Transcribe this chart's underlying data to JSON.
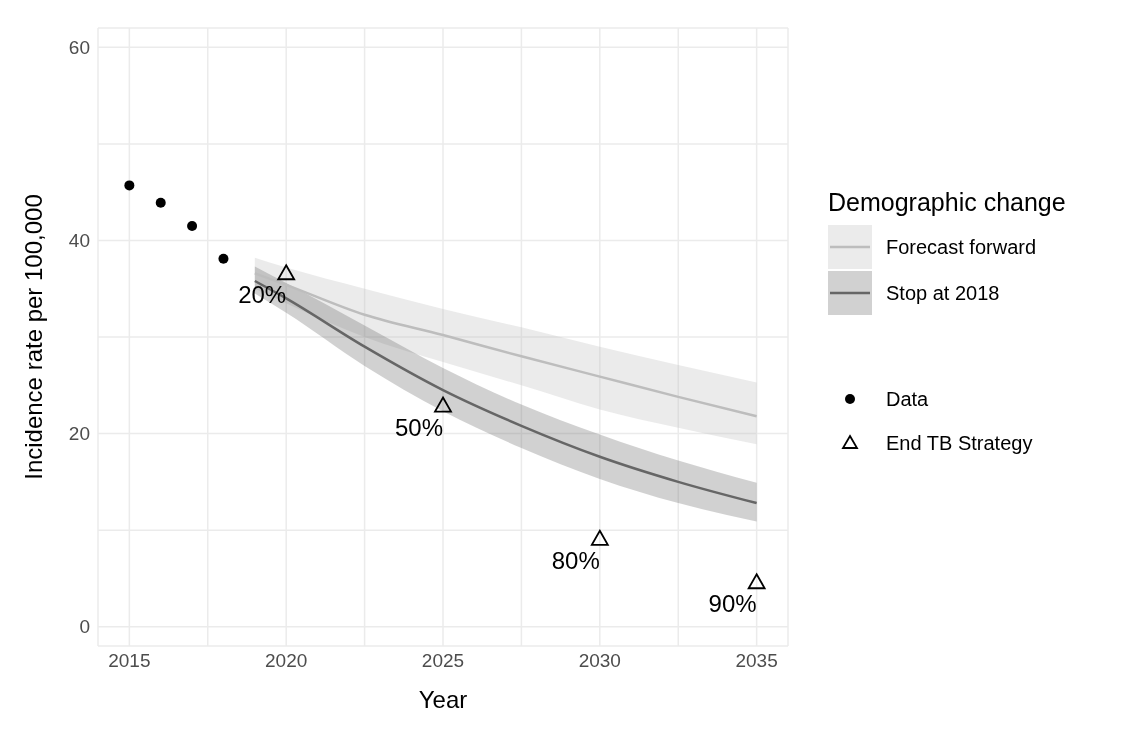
{
  "chart_data": {
    "type": "line",
    "xlabel": "Year",
    "ylabel": "Incidence rate per 100,000",
    "legend_title": "Demographic change",
    "legend": "right",
    "grid": true,
    "xlim": [
      2014,
      2036
    ],
    "xticks": [
      2015,
      {
        "value": 2017.5,
        "label": null
      },
      2020,
      {
        "value": 2022.5,
        "label": null
      },
      2025,
      {
        "value": 2027.5,
        "label": null
      },
      2030,
      {
        "value": 2032.5,
        "label": null
      },
      2035
    ],
    "ylim": [
      -2,
      62
    ],
    "yticks": [
      0,
      {
        "value": 10,
        "label": null
      },
      20,
      {
        "value": 30,
        "label": null
      },
      40,
      {
        "value": 50,
        "label": null
      },
      60
    ],
    "series": [
      {
        "name": "Forecast forward",
        "type": "line",
        "color": "#bdbdbd",
        "x": [
          2019,
          2020,
          2022.5,
          2025,
          2027.5,
          2030,
          2032.5,
          2035
        ],
        "values": [
          36.6,
          35.4,
          32.3,
          30.2,
          28.0,
          25.9,
          23.8,
          21.8
        ],
        "lower": [
          35.0,
          33.5,
          30.0,
          27.4,
          25.0,
          22.5,
          20.6,
          18.9
        ],
        "upper": [
          38.2,
          37.2,
          35.0,
          32.9,
          31.0,
          29.0,
          27.1,
          25.3
        ]
      },
      {
        "name": "Stop at 2018",
        "type": "line",
        "color": "#666666",
        "x": [
          2019,
          2020,
          2022.5,
          2025,
          2027.5,
          2030,
          2032.5,
          2035
        ],
        "values": [
          35.8,
          34.0,
          29.0,
          24.5,
          20.8,
          17.6,
          15.0,
          12.8
        ],
        "lower": [
          34.5,
          32.5,
          27.0,
          22.3,
          18.5,
          15.3,
          12.8,
          10.9
        ],
        "upper": [
          37.3,
          35.6,
          31.2,
          26.8,
          23.0,
          19.9,
          17.2,
          14.9
        ]
      },
      {
        "name": "Data",
        "type": "scatter",
        "marker": "circle",
        "color": "#000000",
        "x": [
          2015,
          2016,
          2017,
          2018
        ],
        "values": [
          45.7,
          43.9,
          41.5,
          38.1
        ]
      },
      {
        "name": "End TB Strategy",
        "type": "scatter",
        "marker": "triangle",
        "color": "#000000",
        "x": [
          2020,
          2025,
          2030,
          2035
        ],
        "values": [
          36.6,
          22.9,
          9.1,
          4.6
        ]
      }
    ],
    "annotations": [
      {
        "text": "20%",
        "x": 2020,
        "y": 36.6
      },
      {
        "text": "50%",
        "x": 2025,
        "y": 22.9
      },
      {
        "text": "80%",
        "x": 2030,
        "y": 9.1
      },
      {
        "text": "90%",
        "x": 2035,
        "y": 4.6
      }
    ]
  }
}
